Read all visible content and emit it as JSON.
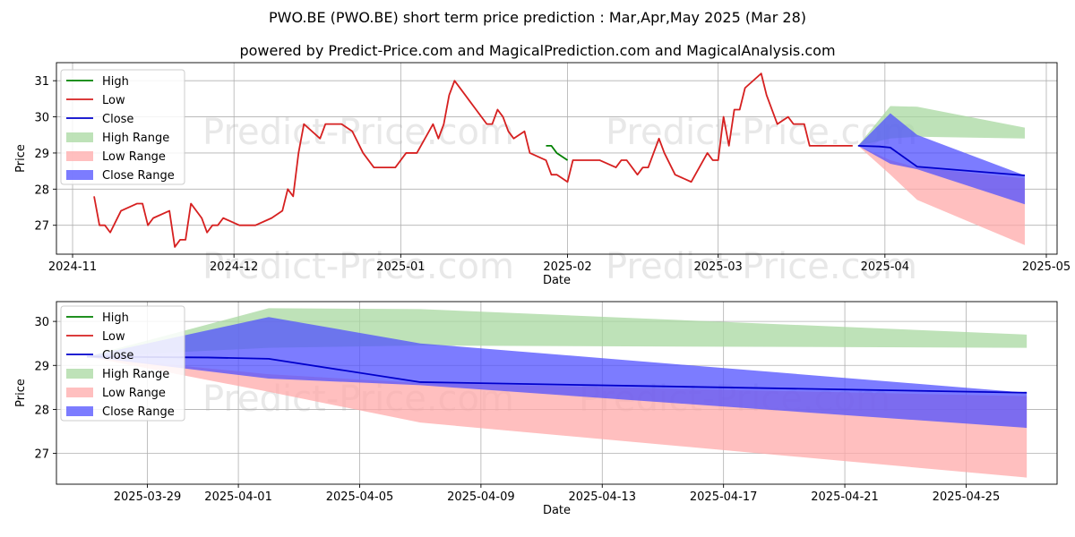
{
  "header": {
    "title": "PWO.BE (PWO.BE) short term price prediction : Mar,Apr,May 2025 (Mar 28)",
    "subtitle": "powered by Predict-Price.com and MagicalPrediction.com and MagicalAnalysis.com"
  },
  "watermark": "Predict-Price.com",
  "legend": [
    "High",
    "Low",
    "Close",
    "High Range",
    "Low Range",
    "Close Range"
  ],
  "colors": {
    "high": "#008000",
    "low": "#d62020",
    "close": "#0000cc",
    "high_range": "#a8d8a0",
    "low_range": "#ffaaaa",
    "close_range": "#5050ff"
  },
  "chart_data": [
    {
      "type": "line",
      "xlabel": "Date",
      "ylabel": "Price",
      "ylim": [
        26.2,
        31.5
      ],
      "xlim": [
        "2024-10-29",
        "2025-05-03"
      ],
      "grid": true,
      "legend_position": "top-left",
      "x_ticks": [
        "2024-11",
        "2024-12",
        "2025-01",
        "2025-02",
        "2025-03",
        "2025-04",
        "2025-05"
      ],
      "y_ticks": [
        27,
        28,
        29,
        30,
        31
      ],
      "series": [
        {
          "name": "Low",
          "x": [
            "2024-11-05",
            "2024-11-06",
            "2024-11-07",
            "2024-11-08",
            "2024-11-10",
            "2024-11-13",
            "2024-11-14",
            "2024-11-15",
            "2024-11-16",
            "2024-11-19",
            "2024-11-20",
            "2024-11-21",
            "2024-11-22",
            "2024-11-23",
            "2024-11-25",
            "2024-11-26",
            "2024-11-27",
            "2024-11-28",
            "2024-11-29",
            "2024-12-02",
            "2024-12-05",
            "2024-12-08",
            "2024-12-10",
            "2024-12-11",
            "2024-12-12",
            "2024-12-13",
            "2024-12-14",
            "2024-12-17",
            "2024-12-18",
            "2024-12-19",
            "2024-12-20",
            "2024-12-21",
            "2024-12-23",
            "2024-12-25",
            "2024-12-27",
            "2024-12-31",
            "2025-01-02",
            "2025-01-04",
            "2025-01-07",
            "2025-01-08",
            "2025-01-09",
            "2025-01-10",
            "2025-01-11",
            "2025-01-13",
            "2025-01-14",
            "2025-01-15",
            "2025-01-17",
            "2025-01-18",
            "2025-01-19",
            "2025-01-20",
            "2025-01-21",
            "2025-01-22",
            "2025-01-24",
            "2025-01-25",
            "2025-01-28",
            "2025-01-29",
            "2025-01-30",
            "2025-02-01",
            "2025-02-02",
            "2025-02-03",
            "2025-02-04",
            "2025-02-05",
            "2025-02-07",
            "2025-02-10",
            "2025-02-11",
            "2025-02-12",
            "2025-02-14",
            "2025-02-15",
            "2025-02-16",
            "2025-02-18",
            "2025-02-19",
            "2025-02-21",
            "2025-02-24",
            "2025-02-27",
            "2025-02-28",
            "2025-03-01",
            "2025-03-02",
            "2025-03-03",
            "2025-03-04",
            "2025-03-05",
            "2025-03-06",
            "2025-03-09",
            "2025-03-10",
            "2025-03-12",
            "2025-03-14",
            "2025-03-15",
            "2025-03-17",
            "2025-03-18",
            "2025-03-19",
            "2025-03-20",
            "2025-03-21",
            "2025-03-22",
            "2025-03-23",
            "2025-03-24",
            "2025-03-25",
            "2025-03-26"
          ],
          "values": [
            27.8,
            27.0,
            27.0,
            26.8,
            27.4,
            27.6,
            27.6,
            27.0,
            27.2,
            27.4,
            26.4,
            26.6,
            26.6,
            27.6,
            27.2,
            26.8,
            27.0,
            27.0,
            27.2,
            27.0,
            27.0,
            27.2,
            27.4,
            28.0,
            27.8,
            29.0,
            29.8,
            29.4,
            29.8,
            29.8,
            29.8,
            29.8,
            29.6,
            29.0,
            28.6,
            28.6,
            29.0,
            29.0,
            29.8,
            29.4,
            29.8,
            30.6,
            31.0,
            30.6,
            30.4,
            30.2,
            29.8,
            29.8,
            30.2,
            30.0,
            29.6,
            29.4,
            29.6,
            29.0,
            28.8,
            28.4,
            28.4,
            28.2,
            28.8,
            28.8,
            28.8,
            28.8,
            28.8,
            28.6,
            28.8,
            28.8,
            28.4,
            28.6,
            28.6,
            29.4,
            29.0,
            28.4,
            28.2,
            29.0,
            28.8,
            28.8,
            30.0,
            29.2,
            30.2,
            30.2,
            30.8,
            31.2,
            30.6,
            29.8,
            30.0,
            29.8,
            29.8,
            29.2,
            29.2,
            29.2,
            29.2,
            29.2,
            29.2,
            29.2,
            29.2,
            29.2
          ]
        },
        {
          "name": "High",
          "x": [
            "2025-01-28",
            "2025-01-29",
            "2025-01-30",
            "2025-02-01"
          ],
          "values": [
            29.2,
            29.2,
            29.0,
            28.8
          ]
        },
        {
          "name": "Close",
          "x": [
            "2025-03-27",
            "2025-03-31",
            "2025-04-02",
            "2025-04-07",
            "2025-04-27"
          ],
          "values": [
            29.2,
            29.18,
            29.15,
            28.62,
            28.38
          ]
        },
        {
          "name": "High Range",
          "x": [
            "2025-03-27",
            "2025-04-02",
            "2025-04-07",
            "2025-04-27"
          ],
          "upper": [
            29.2,
            30.3,
            30.28,
            29.7
          ],
          "lower": [
            29.2,
            29.4,
            29.45,
            29.4
          ]
        },
        {
          "name": "Low Range",
          "x": [
            "2025-03-27",
            "2025-04-02",
            "2025-04-07",
            "2025-04-27"
          ],
          "upper": [
            29.2,
            28.8,
            28.6,
            28.3
          ],
          "lower": [
            29.2,
            28.4,
            27.7,
            26.45
          ]
        },
        {
          "name": "Close Range",
          "x": [
            "2025-03-27",
            "2025-04-02",
            "2025-04-07",
            "2025-04-27"
          ],
          "upper": [
            29.2,
            30.1,
            29.5,
            28.38
          ],
          "lower": [
            29.2,
            28.7,
            28.55,
            27.58
          ]
        }
      ]
    },
    {
      "type": "line",
      "xlabel": "Date",
      "ylabel": "Price",
      "ylim": [
        26.3,
        30.45
      ],
      "xlim": [
        "2025-03-26",
        "2025-04-28"
      ],
      "grid": true,
      "legend_position": "top-left",
      "x_ticks": [
        "2025-03-29",
        "2025-04-01",
        "2025-04-05",
        "2025-04-09",
        "2025-04-13",
        "2025-04-17",
        "2025-04-21",
        "2025-04-25"
      ],
      "y_ticks": [
        27,
        28,
        29,
        30
      ],
      "series": [
        {
          "name": "Close",
          "x": [
            "2025-03-27",
            "2025-03-31",
            "2025-04-02",
            "2025-04-07",
            "2025-04-27"
          ],
          "values": [
            29.2,
            29.18,
            29.15,
            28.62,
            28.38
          ]
        },
        {
          "name": "High Range",
          "x": [
            "2025-03-27",
            "2025-04-02",
            "2025-04-07",
            "2025-04-27"
          ],
          "upper": [
            29.2,
            30.3,
            30.28,
            29.7
          ],
          "lower": [
            29.2,
            29.4,
            29.45,
            29.4
          ]
        },
        {
          "name": "Low Range",
          "x": [
            "2025-03-27",
            "2025-04-02",
            "2025-04-07",
            "2025-04-27"
          ],
          "upper": [
            29.2,
            28.8,
            28.6,
            28.3
          ],
          "lower": [
            29.2,
            28.4,
            27.7,
            26.45
          ]
        },
        {
          "name": "Close Range",
          "x": [
            "2025-03-27",
            "2025-04-02",
            "2025-04-07",
            "2025-04-27"
          ],
          "upper": [
            29.2,
            30.1,
            29.5,
            28.38
          ],
          "lower": [
            29.2,
            28.7,
            28.55,
            27.58
          ]
        }
      ]
    }
  ]
}
